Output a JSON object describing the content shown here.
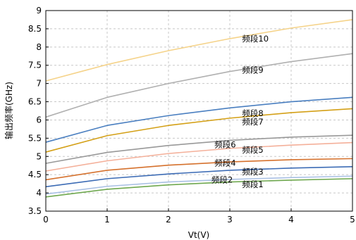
{
  "chart_data": {
    "type": "line",
    "xlabel": "Vt(V)",
    "ylabel": "输出频率(GHz)",
    "xlim": [
      0,
      5
    ],
    "ylim": [
      3.5,
      9
    ],
    "xticks": [
      "0",
      "1",
      "2",
      "3",
      "4",
      "5"
    ],
    "yticks": [
      "3.5",
      "4",
      "4.5",
      "5",
      "5.5",
      "6",
      "6.5",
      "7",
      "7.5",
      "8",
      "8.5",
      "9"
    ],
    "grid": true,
    "x": [
      0,
      1,
      2,
      3,
      4,
      5
    ],
    "series": [
      {
        "name": "频段1",
        "color": "#6fa84f",
        "values": [
          3.89,
          4.1,
          4.22,
          4.3,
          4.35,
          4.39
        ]
      },
      {
        "name": "频段2",
        "color": "#a9c0e4",
        "values": [
          3.97,
          4.18,
          4.3,
          4.37,
          4.42,
          4.46
        ]
      },
      {
        "name": "频段3",
        "color": "#3d6cb5",
        "values": [
          4.17,
          4.39,
          4.52,
          4.62,
          4.68,
          4.72
        ]
      },
      {
        "name": "频段4",
        "color": "#d5712d",
        "values": [
          4.36,
          4.62,
          4.76,
          4.85,
          4.91,
          4.94
        ]
      },
      {
        "name": "频段5",
        "color": "#f4b09a",
        "values": [
          4.6,
          4.88,
          5.08,
          5.22,
          5.31,
          5.38
        ]
      },
      {
        "name": "频段6",
        "color": "#999999",
        "values": [
          4.81,
          5.11,
          5.3,
          5.44,
          5.53,
          5.58
        ]
      },
      {
        "name": "频段7",
        "color": "#d4a017",
        "values": [
          5.12,
          5.57,
          5.85,
          6.05,
          6.2,
          6.31
        ]
      },
      {
        "name": "频段8",
        "color": "#4a7fc0",
        "values": [
          5.39,
          5.85,
          6.12,
          6.33,
          6.5,
          6.62
        ]
      },
      {
        "name": "频段9",
        "color": "#b0b0b0",
        "values": [
          6.08,
          6.62,
          7.0,
          7.33,
          7.6,
          7.82
        ]
      },
      {
        "name": "频段10",
        "color": "#f5d38a",
        "values": [
          7.07,
          7.52,
          7.9,
          8.23,
          8.52,
          8.75
        ]
      }
    ]
  }
}
